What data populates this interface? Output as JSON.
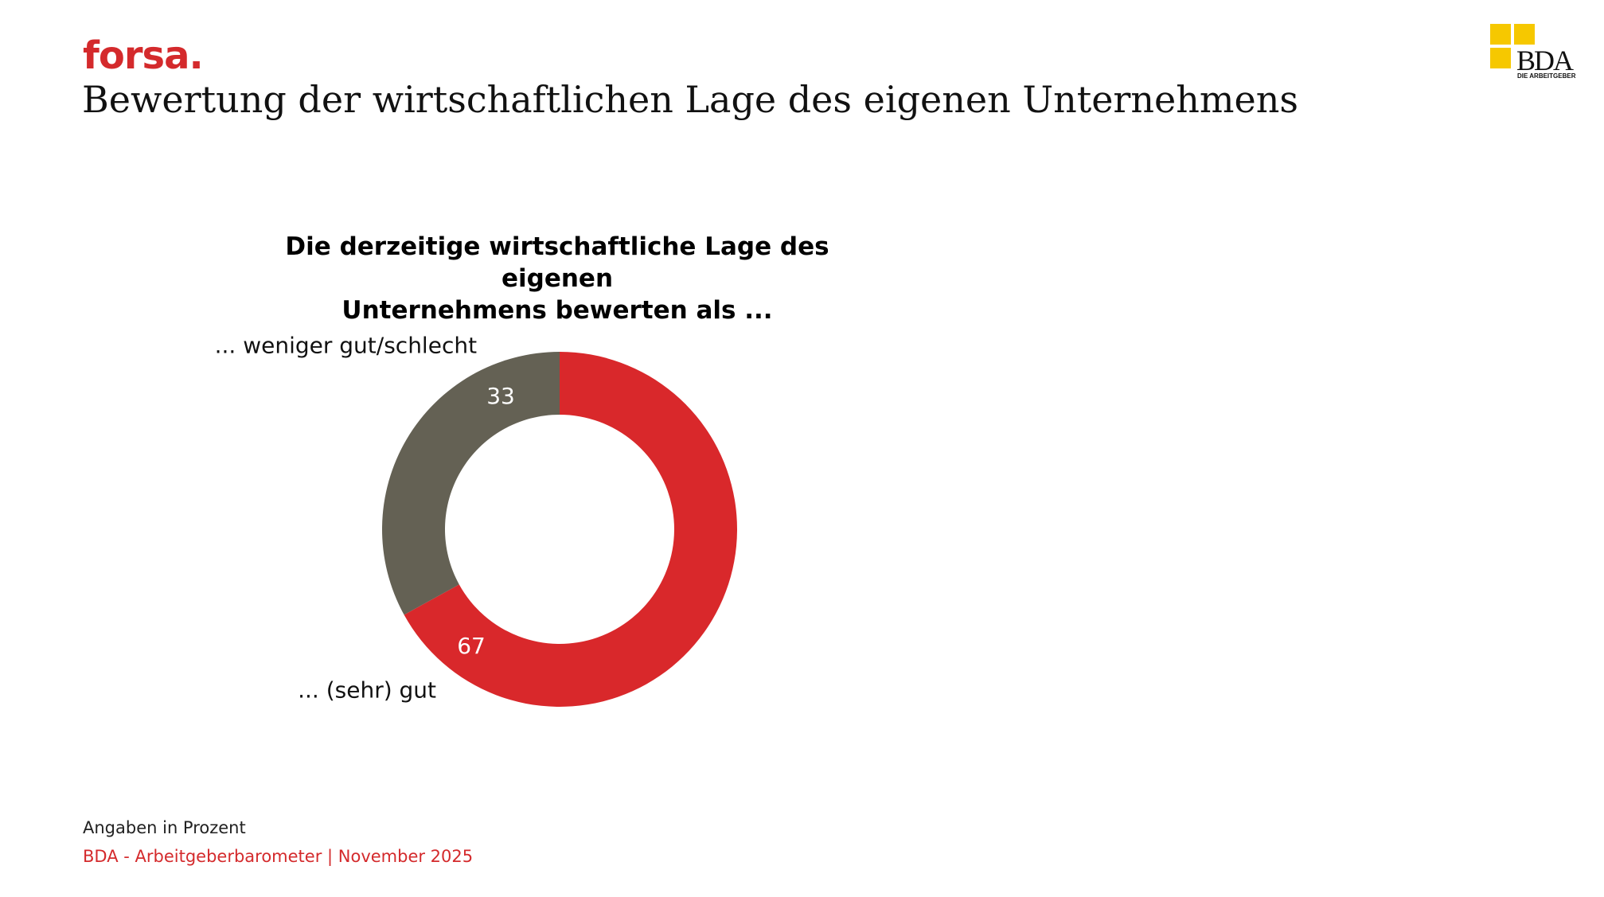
{
  "header": {
    "brand": "forsa.",
    "title": "Bewertung der wirtschaftlichen Lage des eigenen Unternehmens",
    "logo_text": "BDA",
    "logo_subtext": "DIE ARBEITGEBER"
  },
  "chart_data": {
    "type": "pie",
    "title_lines": [
      "Die derzeitige wirtschaftliche Lage des eigenen",
      "Unternehmens bewerten als ..."
    ],
    "slices": [
      {
        "label": "... (sehr) gut",
        "value": 67,
        "value_label": "67",
        "color": "#d9282b"
      },
      {
        "label": "... weniger gut/schlecht",
        "value": 33,
        "value_label": "33",
        "color": "#646154"
      }
    ],
    "unit": "Prozent"
  },
  "footer": {
    "note": "Angaben in Prozent",
    "source": "BDA - Arbeitgeberbarometer | November 2025"
  },
  "colors": {
    "brand_red": "#d42a2c",
    "logo_yellow": "#f6c800"
  }
}
